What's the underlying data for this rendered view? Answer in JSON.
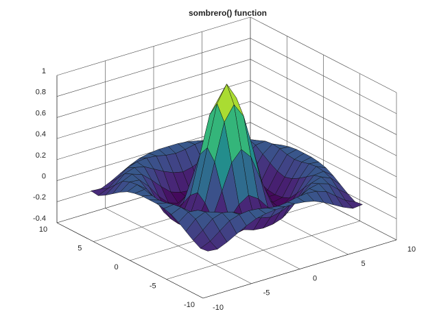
{
  "chart_data": {
    "type": "surface",
    "title": "sombrero() function",
    "x": [
      -8,
      -7,
      -6,
      -5,
      -4,
      -3,
      -2,
      -1,
      0,
      1,
      2,
      3,
      4,
      5,
      6,
      7,
      8
    ],
    "y": [
      -8,
      -7,
      -6,
      -5,
      -4,
      -3,
      -2,
      -1,
      0,
      1,
      2,
      3,
      4,
      5,
      6,
      7,
      8
    ],
    "z": [
      [
        -0.08,
        -0.09,
        -0.05,
        0,
        0.05,
        0.09,
        0.11,
        0.12,
        0.12,
        0.12,
        0.11,
        0.09,
        0.05,
        0,
        -0.05,
        -0.09,
        -0.08
      ],
      [
        -0.09,
        -0.05,
        0.02,
        0.09,
        0.12,
        0.13,
        0.12,
        0.1,
        0.09,
        0.1,
        0.12,
        0.13,
        0.12,
        0.09,
        0.02,
        -0.05,
        -0.09
      ],
      [
        -0.05,
        0.02,
        0.1,
        0.13,
        0.11,
        0.06,
        0.01,
        -0.03,
        -0.05,
        -0.03,
        0.01,
        0.06,
        0.11,
        0.13,
        0.1,
        0.02,
        -0.05
      ],
      [
        0,
        0.09,
        0.13,
        0.1,
        0.02,
        -0.07,
        -0.15,
        -0.18,
        -0.19,
        -0.18,
        -0.15,
        -0.07,
        0.02,
        0.1,
        0.13,
        0.09,
        0
      ],
      [
        0.05,
        0.12,
        0.11,
        0.02,
        -0.1,
        -0.19,
        -0.22,
        -0.2,
        -0.19,
        -0.2,
        -0.22,
        -0.19,
        -0.1,
        0.02,
        0.11,
        0.12,
        0.05
      ],
      [
        0.09,
        0.13,
        0.06,
        -0.07,
        -0.19,
        -0.21,
        -0.12,
        -0.01,
        0.05,
        -0.01,
        -0.12,
        -0.21,
        -0.19,
        -0.07,
        0.06,
        0.13,
        0.09
      ],
      [
        0.11,
        0.12,
        0.01,
        -0.15,
        -0.22,
        -0.12,
        0.11,
        0.35,
        0.45,
        0.35,
        0.11,
        -0.12,
        -0.22,
        -0.15,
        0.01,
        0.12,
        0.11
      ],
      [
        0.12,
        0.1,
        -0.03,
        -0.18,
        -0.2,
        -0.01,
        0.35,
        0.7,
        0.84,
        0.7,
        0.35,
        -0.01,
        -0.2,
        -0.18,
        -0.03,
        0.1,
        0.12
      ],
      [
        0.12,
        0.09,
        -0.05,
        -0.19,
        -0.19,
        0.05,
        0.45,
        0.84,
        1,
        0.84,
        0.45,
        0.05,
        -0.19,
        -0.19,
        -0.05,
        0.09,
        0.12
      ],
      [
        0.12,
        0.1,
        -0.03,
        -0.18,
        -0.2,
        -0.01,
        0.35,
        0.7,
        0.84,
        0.7,
        0.35,
        -0.01,
        -0.2,
        -0.18,
        -0.03,
        0.1,
        0.12
      ],
      [
        0.11,
        0.12,
        0.01,
        -0.15,
        -0.22,
        -0.12,
        0.11,
        0.35,
        0.45,
        0.35,
        0.11,
        -0.12,
        -0.22,
        -0.15,
        0.01,
        0.12,
        0.11
      ],
      [
        0.09,
        0.13,
        0.06,
        -0.07,
        -0.19,
        -0.21,
        -0.12,
        -0.01,
        0.05,
        -0.01,
        -0.12,
        -0.21,
        -0.19,
        -0.07,
        0.06,
        0.13,
        0.09
      ],
      [
        0.05,
        0.12,
        0.11,
        0.02,
        -0.1,
        -0.19,
        -0.22,
        -0.2,
        -0.19,
        -0.2,
        -0.22,
        -0.19,
        -0.1,
        0.02,
        0.11,
        0.12,
        0.05
      ],
      [
        0,
        0.09,
        0.13,
        0.1,
        0.02,
        -0.07,
        -0.15,
        -0.18,
        -0.19,
        -0.18,
        -0.15,
        -0.07,
        0.02,
        0.1,
        0.13,
        0.09,
        0
      ],
      [
        -0.05,
        0.02,
        0.1,
        0.13,
        0.11,
        0.06,
        0.01,
        -0.03,
        -0.05,
        -0.03,
        0.01,
        0.06,
        0.11,
        0.13,
        0.1,
        0.02,
        -0.05
      ],
      [
        -0.09,
        -0.05,
        0.02,
        0.09,
        0.12,
        0.13,
        0.12,
        0.1,
        0.09,
        0.1,
        0.12,
        0.13,
        0.12,
        0.09,
        0.02,
        -0.05,
        -0.09
      ],
      [
        -0.08,
        -0.09,
        -0.05,
        0,
        0.05,
        0.09,
        0.11,
        0.12,
        0.12,
        0.12,
        0.11,
        0.09,
        0.05,
        0,
        -0.05,
        -0.09,
        -0.08
      ]
    ],
    "xlim": [
      -10,
      10
    ],
    "ylim": [
      -10,
      10
    ],
    "zlim": [
      -0.4,
      1
    ],
    "xticks": [
      -10,
      -5,
      0,
      5,
      10
    ],
    "yticks": [
      -10,
      -5,
      0,
      5,
      10
    ],
    "zticks": [
      -0.4,
      -0.2,
      0,
      0.2,
      0.4,
      0.6,
      0.8,
      1
    ],
    "grid": true,
    "colormap": "viridis"
  }
}
